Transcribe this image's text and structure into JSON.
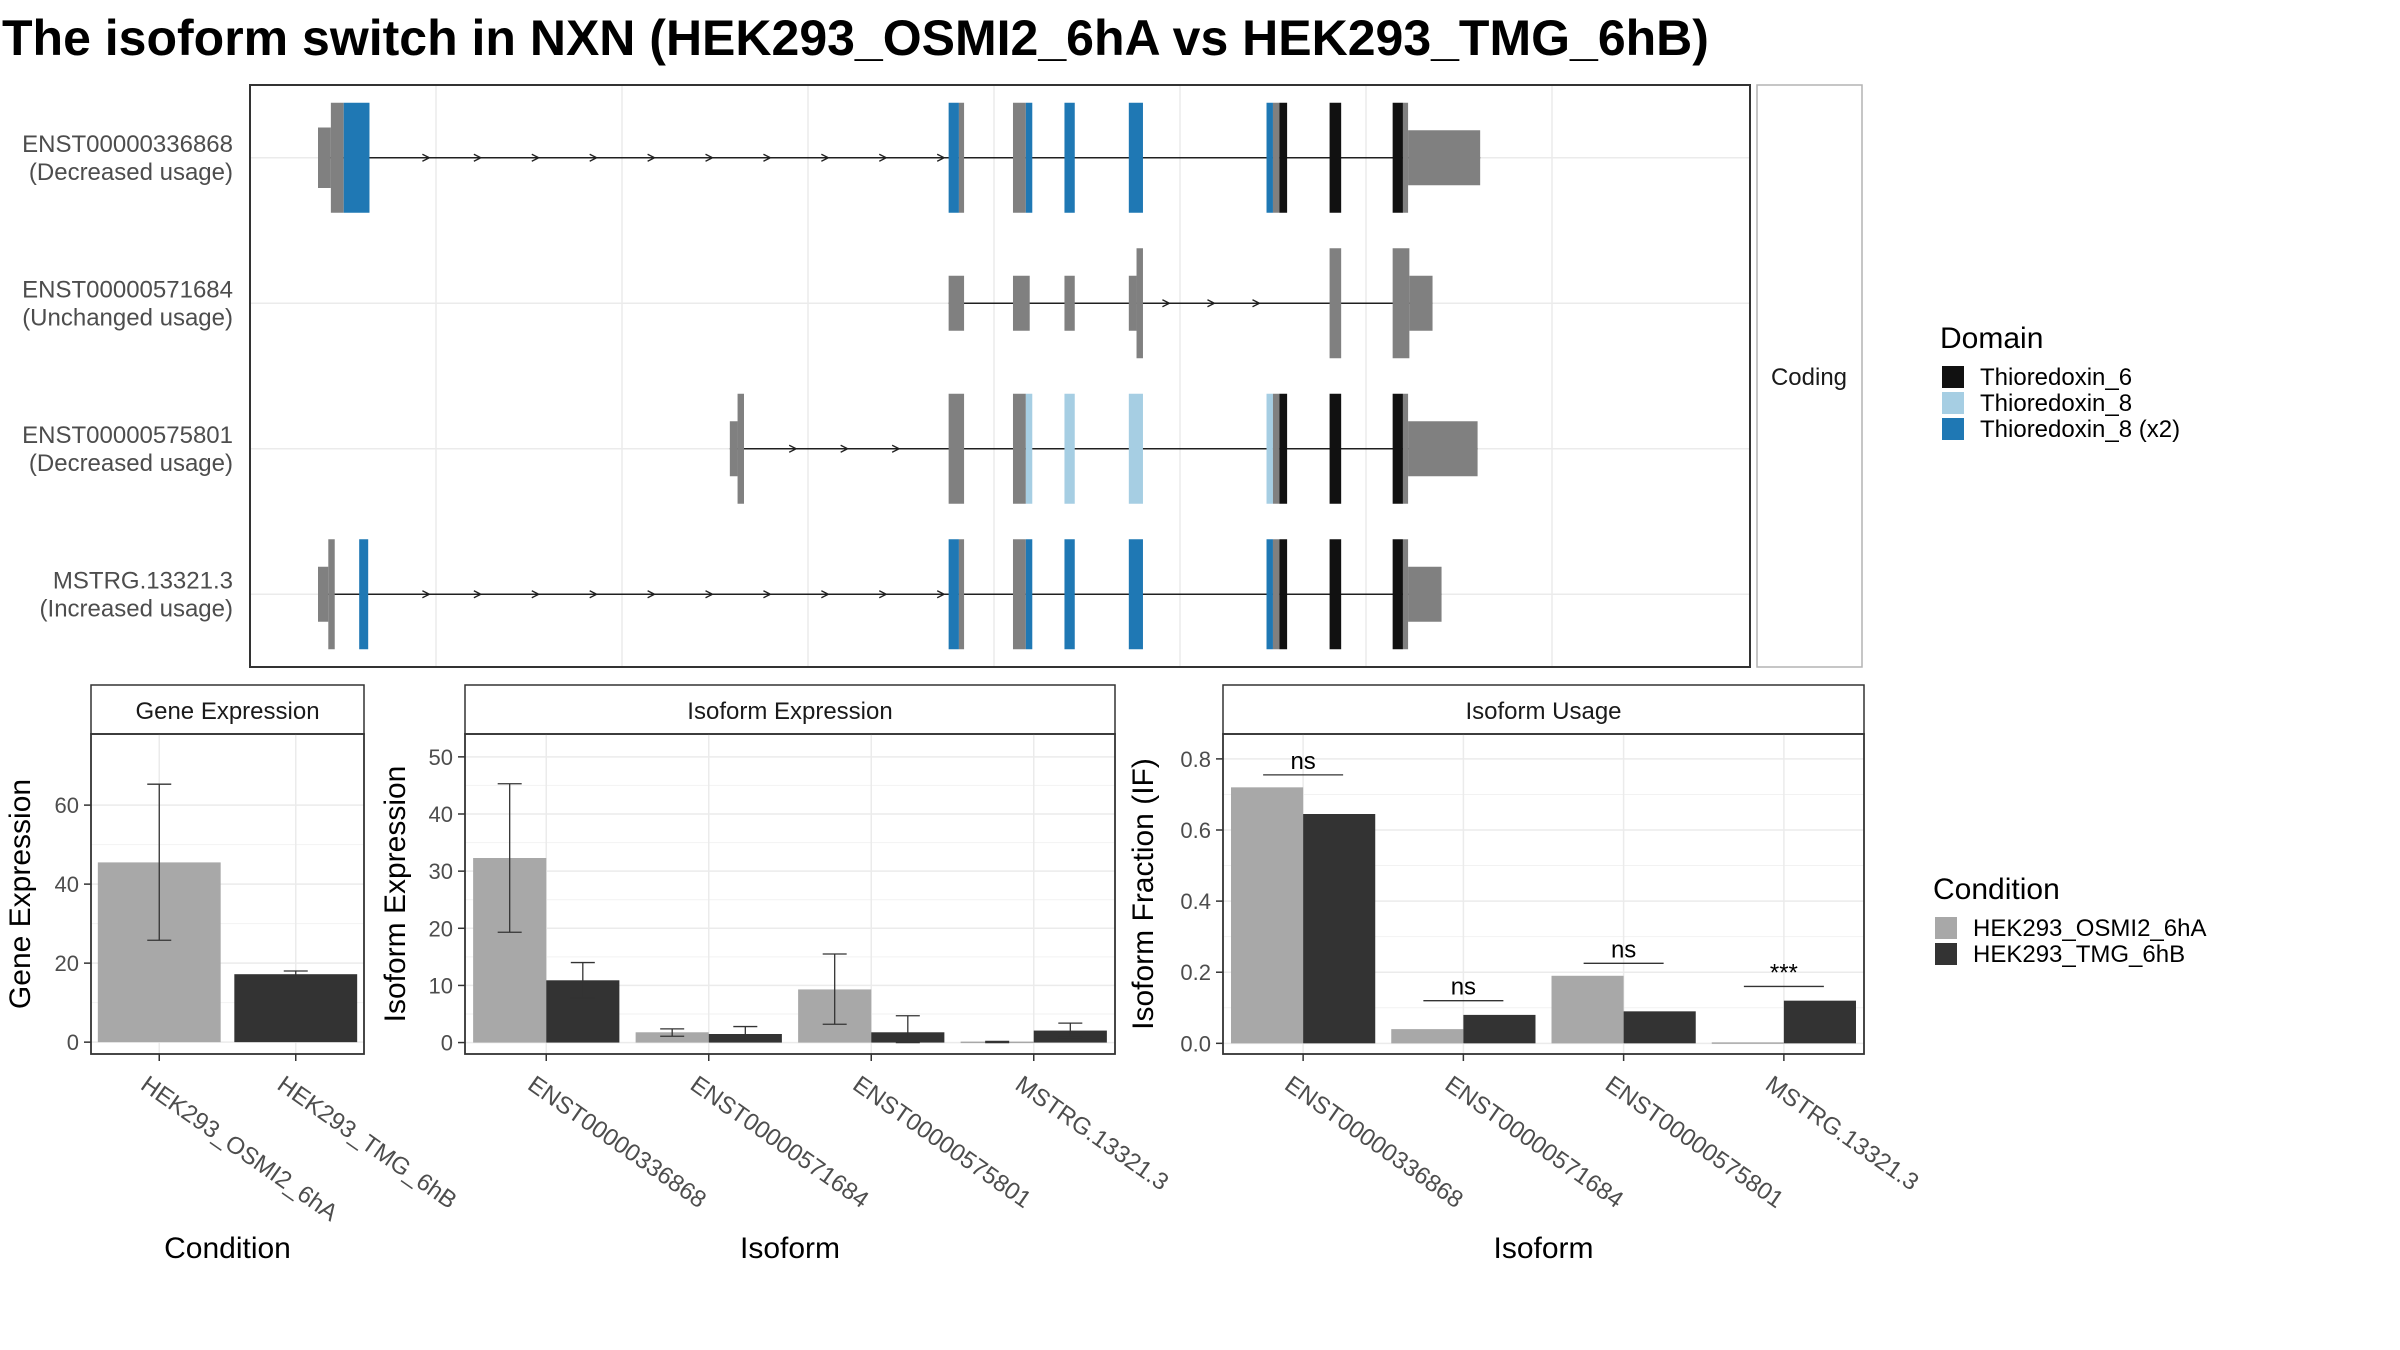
{
  "title": "The isoform switch in NXN (HEK293_OSMI2_6hA vs HEK293_TMG_6hB)",
  "colors": {
    "exon_default": "#808080",
    "intron": "#202020",
    "condition_a": "#a8a8a8",
    "condition_b": "#333333",
    "grid": "#ebebeb",
    "panel_border": "#333333",
    "strip_fill": "#ffffff"
  },
  "chart_data": [
    {
      "type": "gene-structure",
      "facet_label": "Coding",
      "x_range": [
        0,
        1000
      ],
      "legend": {
        "title": "Domain",
        "position": "right",
        "entries": [
          {
            "label": "Thioredoxin_6",
            "color": "#111111"
          },
          {
            "label": "Thioredoxin_8",
            "color": "#a6cee3"
          },
          {
            "label": "Thioredoxin_8 (x2)",
            "color": "#1f78b4"
          }
        ]
      },
      "transcripts": [
        {
          "id": "ENST00000336868",
          "usage": "(Decreased usage)",
          "arrow_x": [
            85,
            125,
            170,
            215,
            260,
            305,
            350,
            395,
            440,
            485
          ],
          "exons": [
            {
              "start": 0,
              "end": 10,
              "h": 0.55,
              "color": "#808080"
            },
            {
              "start": 10,
              "end": 20,
              "h": 1,
              "color": "#808080"
            },
            {
              "start": 20,
              "end": 40,
              "h": 1,
              "color": "#1f78b4"
            },
            {
              "start": 490,
              "end": 498,
              "h": 1,
              "color": "#1f78b4"
            },
            {
              "start": 498,
              "end": 502,
              "h": 1,
              "color": "#808080"
            },
            {
              "start": 540,
              "end": 550,
              "h": 1,
              "color": "#808080"
            },
            {
              "start": 550,
              "end": 555,
              "h": 1,
              "color": "#1f78b4"
            },
            {
              "start": 580,
              "end": 588,
              "h": 1,
              "color": "#1f78b4"
            },
            {
              "start": 630,
              "end": 641,
              "h": 1,
              "color": "#1f78b4"
            },
            {
              "start": 737,
              "end": 742,
              "h": 1,
              "color": "#1f78b4"
            },
            {
              "start": 742,
              "end": 747,
              "h": 1,
              "color": "#808080"
            },
            {
              "start": 747,
              "end": 753,
              "h": 1,
              "color": "#111111"
            },
            {
              "start": 786,
              "end": 795,
              "h": 1,
              "color": "#111111"
            },
            {
              "start": 835,
              "end": 843,
              "h": 1,
              "color": "#111111"
            },
            {
              "start": 843,
              "end": 847,
              "h": 1,
              "color": "#808080"
            },
            {
              "start": 847,
              "end": 903,
              "h": 0.5,
              "color": "#808080"
            }
          ]
        },
        {
          "id": "ENST00000571684",
          "usage": "(Unchanged usage)",
          "arrow_x": [
            660,
            695,
            730
          ],
          "exons": [
            {
              "start": 490,
              "end": 502,
              "h": 0.5,
              "color": "#808080"
            },
            {
              "start": 540,
              "end": 553,
              "h": 0.5,
              "color": "#808080"
            },
            {
              "start": 580,
              "end": 588,
              "h": 0.5,
              "color": "#808080"
            },
            {
              "start": 630,
              "end": 636,
              "h": 0.5,
              "color": "#808080"
            },
            {
              "start": 636,
              "end": 641,
              "h": 1,
              "color": "#808080"
            },
            {
              "start": 786,
              "end": 795,
              "h": 1,
              "color": "#808080"
            },
            {
              "start": 835,
              "end": 848,
              "h": 1,
              "color": "#808080"
            },
            {
              "start": 848,
              "end": 866,
              "h": 0.5,
              "color": "#808080"
            }
          ]
        },
        {
          "id": "ENST00000575801",
          "usage": "(Decreased usage)",
          "arrow_x": [
            370,
            410,
            450
          ],
          "exons": [
            {
              "start": 320,
              "end": 326,
              "h": 0.5,
              "color": "#808080"
            },
            {
              "start": 326,
              "end": 331,
              "h": 1,
              "color": "#808080"
            },
            {
              "start": 490,
              "end": 502,
              "h": 1,
              "color": "#808080"
            },
            {
              "start": 540,
              "end": 550,
              "h": 1,
              "color": "#808080"
            },
            {
              "start": 550,
              "end": 555,
              "h": 1,
              "color": "#a6cee3"
            },
            {
              "start": 580,
              "end": 588,
              "h": 1,
              "color": "#a6cee3"
            },
            {
              "start": 630,
              "end": 641,
              "h": 1,
              "color": "#a6cee3"
            },
            {
              "start": 737,
              "end": 742,
              "h": 1,
              "color": "#a6cee3"
            },
            {
              "start": 742,
              "end": 747,
              "h": 1,
              "color": "#808080"
            },
            {
              "start": 747,
              "end": 753,
              "h": 1,
              "color": "#111111"
            },
            {
              "start": 786,
              "end": 795,
              "h": 1,
              "color": "#111111"
            },
            {
              "start": 835,
              "end": 843,
              "h": 1,
              "color": "#111111"
            },
            {
              "start": 843,
              "end": 847,
              "h": 1,
              "color": "#808080"
            },
            {
              "start": 847,
              "end": 901,
              "h": 0.5,
              "color": "#808080"
            }
          ]
        },
        {
          "id": "MSTRG.13321.3",
          "usage": "(Increased usage)",
          "arrow_x": [
            85,
            125,
            170,
            215,
            260,
            305,
            350,
            395,
            440,
            485
          ],
          "exons": [
            {
              "start": 0,
              "end": 8,
              "h": 0.5,
              "color": "#808080"
            },
            {
              "start": 8,
              "end": 13,
              "h": 1,
              "color": "#808080"
            },
            {
              "start": 32,
              "end": 39,
              "h": 1,
              "color": "#1f78b4"
            },
            {
              "start": 490,
              "end": 498,
              "h": 1,
              "color": "#1f78b4"
            },
            {
              "start": 498,
              "end": 502,
              "h": 1,
              "color": "#808080"
            },
            {
              "start": 540,
              "end": 550,
              "h": 1,
              "color": "#808080"
            },
            {
              "start": 550,
              "end": 555,
              "h": 1,
              "color": "#1f78b4"
            },
            {
              "start": 580,
              "end": 588,
              "h": 1,
              "color": "#1f78b4"
            },
            {
              "start": 630,
              "end": 641,
              "h": 1,
              "color": "#1f78b4"
            },
            {
              "start": 737,
              "end": 742,
              "h": 1,
              "color": "#1f78b4"
            },
            {
              "start": 742,
              "end": 747,
              "h": 1,
              "color": "#808080"
            },
            {
              "start": 747,
              "end": 753,
              "h": 1,
              "color": "#111111"
            },
            {
              "start": 786,
              "end": 795,
              "h": 1,
              "color": "#111111"
            },
            {
              "start": 835,
              "end": 843,
              "h": 1,
              "color": "#111111"
            },
            {
              "start": 843,
              "end": 847,
              "h": 1,
              "color": "#808080"
            },
            {
              "start": 847,
              "end": 873,
              "h": 0.5,
              "color": "#808080"
            }
          ]
        }
      ]
    },
    {
      "type": "bar",
      "strip": "Gene Expression",
      "ylabel": "Gene Expression",
      "xlabel": "Condition",
      "ylim": [
        -3,
        78
      ],
      "yticks": [
        0,
        20,
        40,
        60
      ],
      "categories": [
        "HEK293_OSMI2_6hA",
        "HEK293_TMG_6hB"
      ],
      "series": [
        {
          "values": [
            45.5,
            17.2
          ],
          "err_low": [
            25.8,
            16.4
          ],
          "err_high": [
            65.3,
            18
          ]
        }
      ]
    },
    {
      "type": "bar",
      "strip": "Isoform Expression",
      "ylabel": "Isoform Expression",
      "xlabel": "Isoform",
      "ylim": [
        -2,
        54
      ],
      "yticks": [
        0,
        10,
        20,
        30,
        40,
        50
      ],
      "categories": [
        "ENST00000336868",
        "ENST00000571684",
        "ENST00000575801",
        "MSTRG.13321.3"
      ],
      "series": [
        {
          "name": "HEK293_OSMI2_6hA",
          "values": [
            32.3,
            1.8,
            9.3,
            0.1
          ],
          "err_low": [
            19.3,
            1.1,
            3.2,
            0.0
          ],
          "err_high": [
            45.3,
            2.4,
            15.5,
            0.2
          ]
        },
        {
          "name": "HEK293_TMG_6hB",
          "values": [
            10.9,
            1.5,
            1.8,
            2.1
          ],
          "err_low": [
            7.8,
            0.3,
            0.0,
            0.9
          ],
          "err_high": [
            14.0,
            2.8,
            4.7,
            3.4
          ]
        }
      ]
    },
    {
      "type": "bar",
      "strip": "Isoform Usage",
      "ylabel": "Isoform Fraction (IF)",
      "xlabel": "Isoform",
      "ylim": [
        -0.03,
        0.87
      ],
      "yticks": [
        "0.0",
        "0.2",
        "0.4",
        "0.6",
        "0.8"
      ],
      "categories": [
        "ENST00000336868",
        "ENST00000571684",
        "ENST00000575801",
        "MSTRG.13321.3"
      ],
      "series": [
        {
          "name": "HEK293_OSMI2_6hA",
          "values": [
            0.72,
            0.04,
            0.19,
            0.0
          ]
        },
        {
          "name": "HEK293_TMG_6hB",
          "values": [
            0.645,
            0.08,
            0.09,
            0.12
          ]
        }
      ],
      "significance": [
        {
          "label": "ns",
          "y": 0.755
        },
        {
          "label": "ns",
          "y": 0.12
        },
        {
          "label": "ns",
          "y": 0.225
        },
        {
          "label": "***",
          "y": 0.16
        }
      ]
    }
  ],
  "condition_legend": {
    "title": "Condition",
    "position": "right",
    "entries": [
      {
        "label": "HEK293_OSMI2_6hA",
        "color": "#a8a8a8"
      },
      {
        "label": "HEK293_TMG_6hB",
        "color": "#333333"
      }
    ]
  }
}
